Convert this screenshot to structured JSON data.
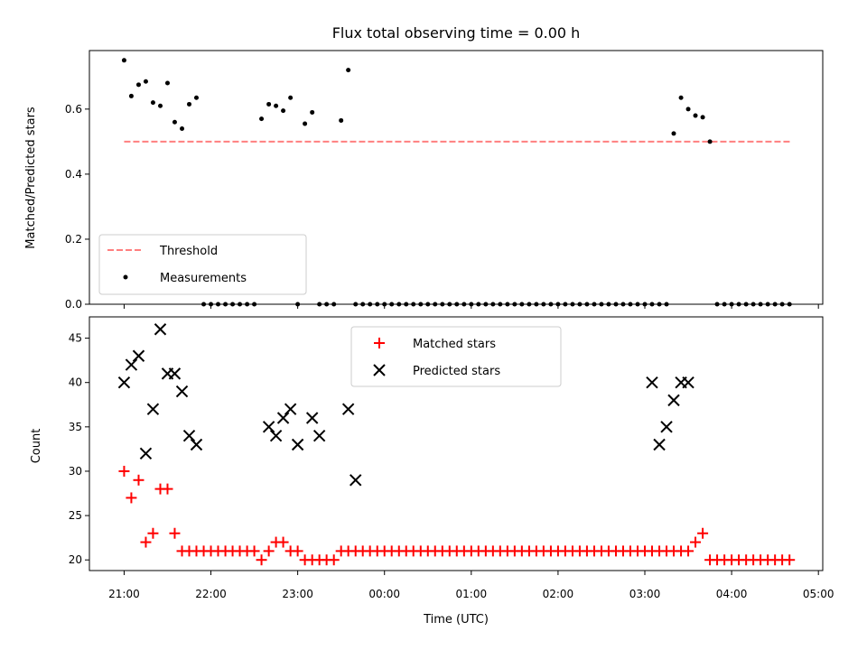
{
  "figure_title": "Flux total observing time = 0.00 h",
  "chart_data": [
    {
      "type": "scatter",
      "ylabel": "Matched/Predicted stars",
      "ylim": [
        0,
        0.78
      ],
      "yticks": [
        "0.0",
        "0.2",
        "0.4",
        "0.6"
      ],
      "xlim_hours": [
        20.6,
        29.05
      ],
      "threshold": {
        "name": "Threshold",
        "value": 0.5,
        "x_range": [
          21.0,
          28.67
        ],
        "color": "#ff7f7f",
        "style": "dashed"
      },
      "measurements": {
        "name": "Measurements",
        "color": "#000000",
        "x": [
          21.0,
          21.083,
          21.167,
          21.25,
          21.333,
          21.417,
          21.5,
          21.583,
          21.667,
          21.75,
          21.833,
          21.917,
          22.0,
          22.083,
          22.167,
          22.25,
          22.333,
          22.417,
          22.5,
          22.583,
          22.667,
          22.75,
          22.833,
          22.917,
          23.0,
          23.083,
          23.167,
          23.25,
          23.333,
          23.417,
          23.5,
          23.583,
          23.667,
          23.75,
          23.833,
          23.917,
          24.0,
          24.083,
          24.167,
          24.25,
          24.333,
          24.417,
          24.5,
          24.583,
          24.667,
          24.75,
          24.833,
          24.917,
          25.0,
          25.083,
          25.167,
          25.25,
          25.333,
          25.417,
          25.5,
          25.583,
          25.667,
          25.75,
          25.833,
          25.917,
          26.0,
          26.083,
          26.167,
          26.25,
          26.333,
          26.417,
          26.5,
          26.583,
          26.667,
          26.75,
          26.833,
          26.917,
          27.0,
          27.083,
          27.167,
          27.25,
          27.333,
          27.417,
          27.5,
          27.583,
          27.667,
          27.75,
          27.833,
          27.917,
          28.0,
          28.083,
          28.167,
          28.25,
          28.333,
          28.417,
          28.5,
          28.583,
          28.667
        ],
        "y": [
          0.75,
          0.64,
          0.675,
          0.685,
          0.62,
          0.61,
          0.68,
          0.56,
          0.54,
          0.615,
          0.635,
          0,
          0,
          0,
          0,
          0,
          0,
          0,
          0,
          0.57,
          0.615,
          0.61,
          0.595,
          0.635,
          0,
          0.555,
          0.59,
          0,
          0,
          0,
          0.565,
          0.72,
          0,
          0,
          0,
          0,
          0,
          0,
          0,
          0,
          0,
          0,
          0,
          0,
          0,
          0,
          0,
          0,
          0,
          0,
          0,
          0,
          0,
          0,
          0,
          0,
          0,
          0,
          0,
          0,
          0,
          0,
          0,
          0,
          0,
          0,
          0,
          0,
          0,
          0,
          0,
          0,
          0,
          0,
          0,
          0,
          0.525,
          0.635,
          0.6,
          0.58,
          0.575,
          0.5,
          0,
          0,
          0,
          0,
          0,
          0,
          0,
          0,
          0,
          0,
          0
        ]
      },
      "legend": {
        "placement": "lower-left",
        "entries": [
          "Threshold",
          "Measurements"
        ]
      }
    },
    {
      "type": "scatter",
      "xlabel": "Time (UTC)",
      "ylabel": "Count",
      "ylim": [
        18.8,
        47.4
      ],
      "yticks": [
        "20",
        "25",
        "30",
        "35",
        "40",
        "45"
      ],
      "xlim_hours": [
        20.6,
        29.05
      ],
      "xticks": [
        "21:00",
        "22:00",
        "23:00",
        "00:00",
        "01:00",
        "02:00",
        "03:00",
        "04:00",
        "05:00"
      ],
      "matched": {
        "name": "Matched stars",
        "color": "#ff0000",
        "marker": "+",
        "x": [
          21.0,
          21.083,
          21.167,
          21.25,
          21.333,
          21.417,
          21.5,
          21.583,
          21.667,
          21.75,
          21.833,
          21.917,
          22.0,
          22.083,
          22.167,
          22.25,
          22.333,
          22.417,
          22.5,
          22.583,
          22.667,
          22.75,
          22.833,
          22.917,
          23.0,
          23.083,
          23.167,
          23.25,
          23.333,
          23.417,
          23.5,
          23.583,
          23.667,
          23.75,
          23.833,
          23.917,
          24.0,
          24.083,
          24.167,
          24.25,
          24.333,
          24.417,
          24.5,
          24.583,
          24.667,
          24.75,
          24.833,
          24.917,
          25.0,
          25.083,
          25.167,
          25.25,
          25.333,
          25.417,
          25.5,
          25.583,
          25.667,
          25.75,
          25.833,
          25.917,
          26.0,
          26.083,
          26.167,
          26.25,
          26.333,
          26.417,
          26.5,
          26.583,
          26.667,
          26.75,
          26.833,
          26.917,
          27.0,
          27.083,
          27.167,
          27.25,
          27.333,
          27.417,
          27.5,
          27.583,
          27.667,
          27.75,
          27.833,
          27.917,
          28.0,
          28.083,
          28.167,
          28.25,
          28.333,
          28.417,
          28.5,
          28.583,
          28.667
        ],
        "y": [
          30,
          27,
          29,
          22,
          23,
          28,
          28,
          23,
          21,
          21,
          21,
          21,
          21,
          21,
          21,
          21,
          21,
          21,
          21,
          20,
          21,
          22,
          22,
          21,
          21,
          20,
          20,
          20,
          20,
          20,
          21,
          21,
          21,
          21,
          21,
          21,
          21,
          21,
          21,
          21,
          21,
          21,
          21,
          21,
          21,
          21,
          21,
          21,
          21,
          21,
          21,
          21,
          21,
          21,
          21,
          21,
          21,
          21,
          21,
          21,
          21,
          21,
          21,
          21,
          21,
          21,
          21,
          21,
          21,
          21,
          21,
          21,
          21,
          21,
          21,
          21,
          21,
          21,
          21,
          22,
          23,
          20,
          20,
          20,
          20,
          20,
          20,
          20,
          20,
          20,
          20,
          20,
          20
        ]
      },
      "predicted": {
        "name": "Predicted stars",
        "color": "#000000",
        "marker": "x",
        "x": [
          21.0,
          21.083,
          21.167,
          21.25,
          21.333,
          21.417,
          21.5,
          21.583,
          21.667,
          21.75,
          21.833,
          22.667,
          22.75,
          22.833,
          22.917,
          23.0,
          23.167,
          23.25,
          23.583,
          23.667,
          27.083,
          27.167,
          27.25,
          27.333,
          27.417,
          27.5
        ],
        "y": [
          40,
          42,
          43,
          32,
          37,
          46,
          41,
          41,
          39,
          34,
          33,
          35,
          34,
          36,
          37,
          33,
          36,
          34,
          37,
          29,
          40,
          33,
          35,
          38,
          40,
          40
        ]
      },
      "legend": {
        "placement": "upper-center",
        "entries": [
          "Matched stars",
          "Predicted stars"
        ]
      }
    }
  ]
}
